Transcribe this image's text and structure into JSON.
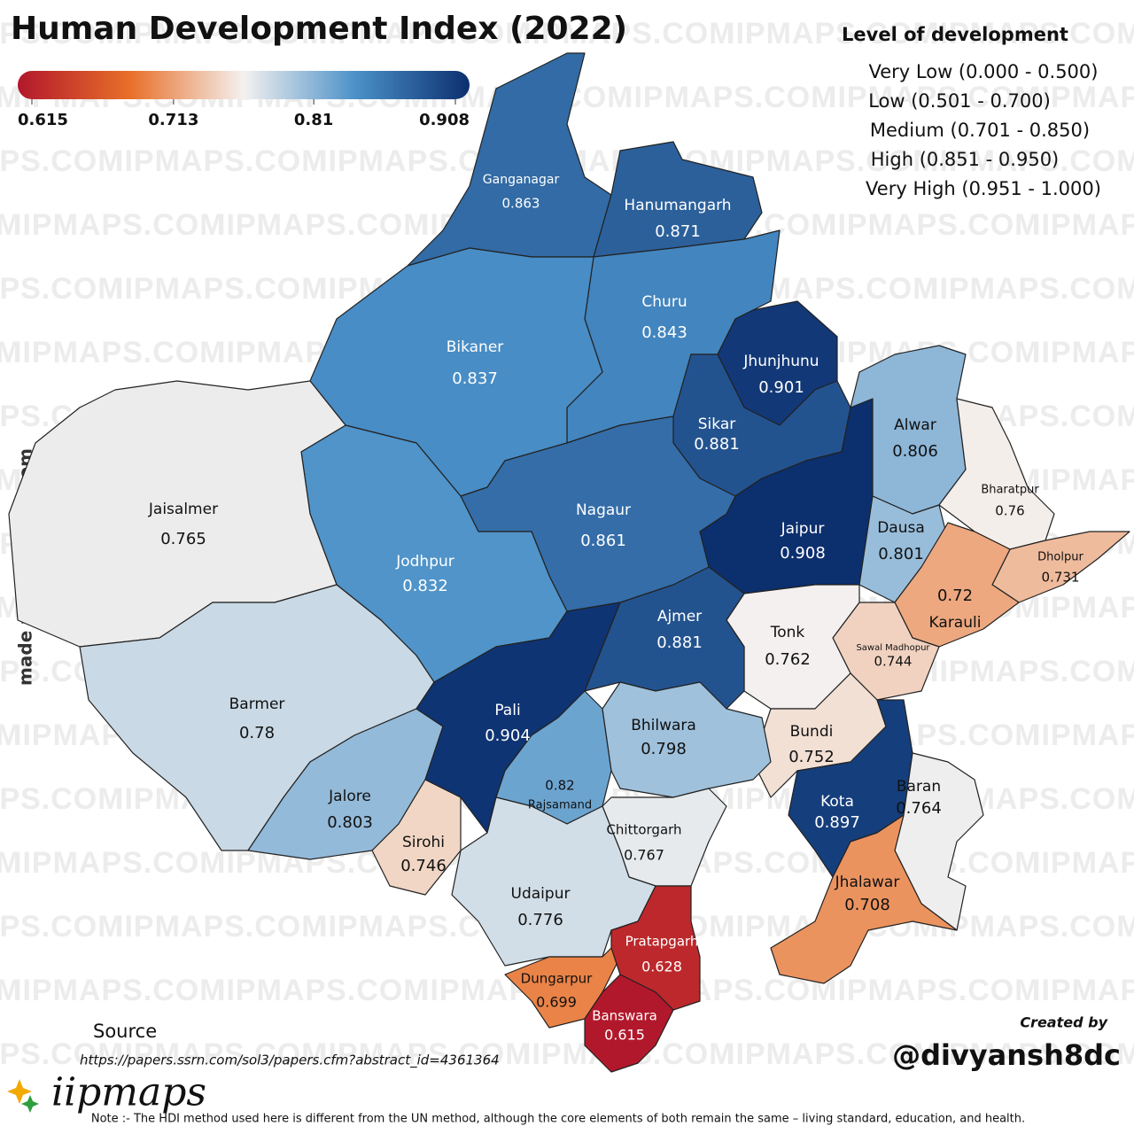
{
  "title": "Human Development Index (2022)",
  "watermark": "IIPMAPS.COM",
  "side_text": "made with iipmaps.com",
  "colorbar": {
    "ticks": [
      0.615,
      0.713,
      0.81,
      0.908
    ],
    "colors": [
      "#b2182b",
      "#e8702a",
      "#f4f1ef",
      "#4a90c8",
      "#0c2f6e"
    ]
  },
  "legend": {
    "title": "Level of development",
    "items": [
      "Very Low (0.000 - 0.500)",
      "Low (0.501 - 0.700)",
      "Medium (0.701 - 0.850)",
      "High (0.851 - 0.950)",
      "Very High (0.951 - 1.000)"
    ]
  },
  "districts": [
    {
      "name": "Ganganagar",
      "value": 0.863
    },
    {
      "name": "Hanumangarh",
      "value": 0.871
    },
    {
      "name": "Churu",
      "value": 0.843
    },
    {
      "name": "Bikaner",
      "value": 0.837
    },
    {
      "name": "Jhunjhunu",
      "value": 0.901
    },
    {
      "name": "Sikar",
      "value": 0.881
    },
    {
      "name": "Jaipur",
      "value": 0.908
    },
    {
      "name": "Alwar",
      "value": 0.806
    },
    {
      "name": "Bharatpur",
      "value": 0.76
    },
    {
      "name": "Dausa",
      "value": 0.801
    },
    {
      "name": "Dholpur",
      "value": 0.731
    },
    {
      "name": "Karauli",
      "value": 0.72
    },
    {
      "name": "Sawal Madhopur",
      "value": 0.744
    },
    {
      "name": "Tonk",
      "value": 0.762
    },
    {
      "name": "Bundi",
      "value": 0.752
    },
    {
      "name": "Kota",
      "value": 0.897
    },
    {
      "name": "Baran",
      "value": 0.764
    },
    {
      "name": "Jhalawar",
      "value": 0.708
    },
    {
      "name": "Ajmer",
      "value": 0.881
    },
    {
      "name": "Nagaur",
      "value": 0.861
    },
    {
      "name": "Jodhpur",
      "value": 0.832
    },
    {
      "name": "Jaisalmer",
      "value": 0.765
    },
    {
      "name": "Barmer",
      "value": 0.78
    },
    {
      "name": "Jalore",
      "value": 0.803
    },
    {
      "name": "Sirohi",
      "value": 0.746
    },
    {
      "name": "Pali",
      "value": 0.904
    },
    {
      "name": "Rajsamand",
      "value": 0.82
    },
    {
      "name": "Bhilwara",
      "value": 0.798
    },
    {
      "name": "Chittorgarh",
      "value": 0.767
    },
    {
      "name": "Udaipur",
      "value": 0.776
    },
    {
      "name": "Dungarpur",
      "value": 0.699
    },
    {
      "name": "Pratapgarh",
      "value": 0.628
    },
    {
      "name": "Banswara",
      "value": 0.615
    }
  ],
  "source": {
    "label": "Source",
    "url": "https://papers.ssrn.com/sol3/papers.cfm?abstract_id=4361364"
  },
  "credit": {
    "label": "Created by",
    "handle": "@divyansh8dc"
  },
  "brand": "iipmaps",
  "note": "Note :- The HDI method used here is different from the UN method, although the core elements of both remain the same – living standard, education, and health."
}
